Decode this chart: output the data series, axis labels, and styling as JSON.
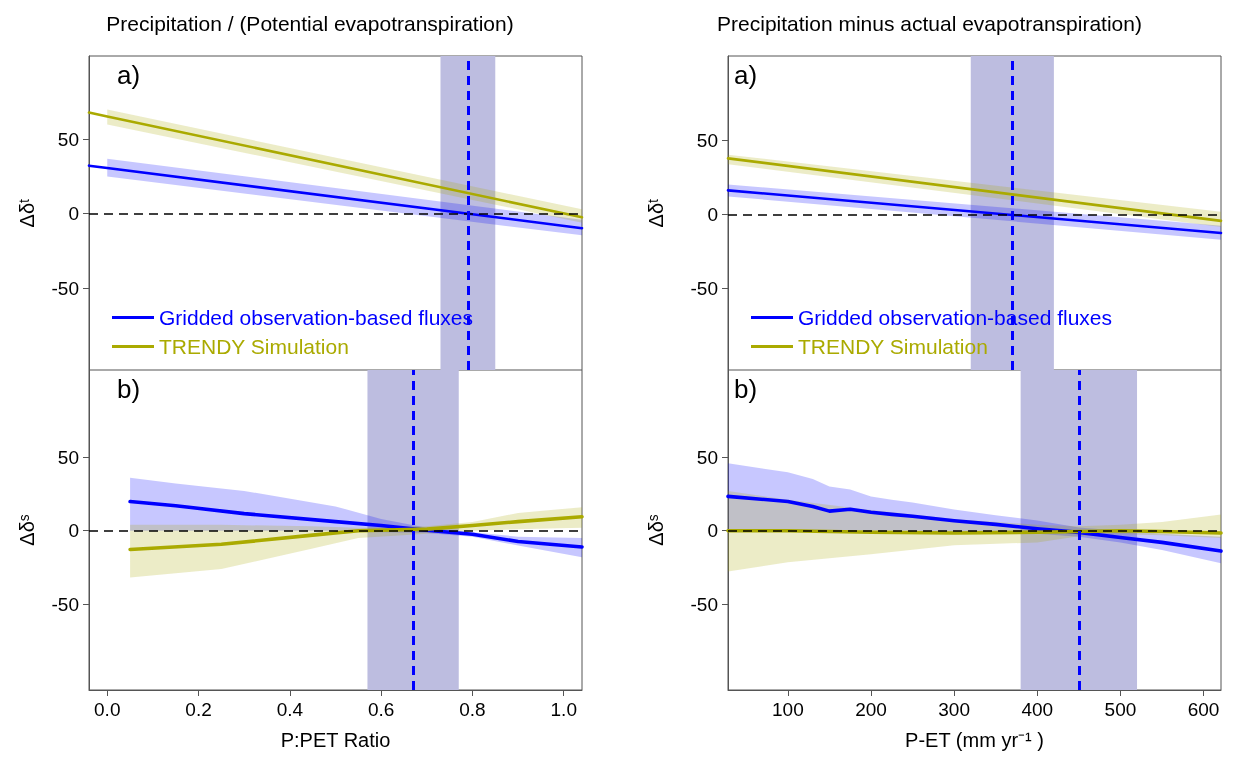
{
  "chart_data": [
    {
      "type": "line",
      "title": "Precipitation / (Potential evapotranspiration)",
      "ylabel": "Δδᵗ",
      "annotations": [
        "a)"
      ],
      "xlim": [
        -0.04,
        1.04
      ],
      "ylim": [
        -105,
        106
      ],
      "yticks": [
        -50,
        0,
        50
      ],
      "tick_labels": "y",
      "legend": "bottom left",
      "series": [
        {
          "name": "Gridded observation-based fluxes",
          "color": "#0000ff",
          "x": [
            -0.04,
            0,
            1.04
          ],
          "values": [
            32.3,
            30.7,
            -9.7
          ],
          "lower": [
            null,
            25,
            -14.5
          ],
          "upper": [
            null,
            37,
            -4
          ]
        },
        {
          "name": "TRENDY Simulation",
          "color": "#aaaa00",
          "x": [
            -0.04,
            0,
            1.04
          ],
          "values": [
            68,
            65.4,
            -2.4
          ],
          "lower": [
            null,
            60,
            -6
          ],
          "upper": [
            null,
            70,
            3
          ]
        }
      ],
      "ref_lines": [
        {
          "axis": "y",
          "value": 0,
          "color": "#000000",
          "line_style": "dashed"
        },
        {
          "axis": "x",
          "value": 0.79,
          "color": "#0000ff",
          "line_style": "dashed"
        }
      ],
      "bands": [
        {
          "axis": "x",
          "from": 0.73,
          "to": 0.85,
          "color": "#bdbde0"
        }
      ]
    },
    {
      "type": "line",
      "xlabel": "P:PET Ratio",
      "ylabel": "Δδˢ",
      "annotations": [
        "b)"
      ],
      "xlim": [
        -0.04,
        1.04
      ],
      "xticks": [
        {
          "value": 0,
          "label": "0.0"
        },
        0.2,
        0.4,
        0.6,
        0.8,
        {
          "value": 1,
          "label": "1.0"
        }
      ],
      "ylim": [
        -108,
        109
      ],
      "yticks": [
        -50,
        0,
        50
      ],
      "series": [
        {
          "color": "#0000ff",
          "x": [
            0.05,
            0.15,
            0.3,
            0.5,
            0.6,
            0.7,
            0.8,
            0.9,
            1.04
          ],
          "values": [
            19.8,
            17,
            11.6,
            6.2,
            3.5,
            0.3,
            -2.4,
            -7.3,
            -11
          ],
          "lower": [
            0,
            0,
            0,
            0,
            -1,
            -1.5,
            -4,
            -10,
            -18
          ],
          "upper": [
            36,
            32,
            27,
            16.5,
            8,
            2,
            -1,
            -4,
            -5
          ]
        },
        {
          "color": "#aaaa00",
          "x": [
            0.05,
            0.25,
            0.45,
            0.55,
            0.7,
            0.8,
            0.9,
            1.04
          ],
          "values": [
            -12.7,
            -9.2,
            -3,
            0,
            1.1,
            3.5,
            6.2,
            9.5
          ],
          "lower": [
            -31.7,
            -26,
            -12,
            -5,
            -2,
            0,
            1,
            2
          ],
          "upper": [
            4,
            4,
            3,
            2,
            3,
            6,
            12,
            16
          ]
        }
      ],
      "ref_lines": [
        {
          "axis": "y",
          "value": 0,
          "color": "#000000",
          "line_style": "dashed"
        },
        {
          "axis": "x",
          "value": 0.67,
          "color": "#0000ff",
          "line_style": "dashed"
        }
      ],
      "bands": [
        {
          "axis": "x",
          "from": 0.57,
          "to": 0.77,
          "color": "#bdbde0"
        }
      ]
    },
    {
      "type": "line",
      "title": "Precipitation minus actual evapotranspiration)",
      "ylabel": "Δδᵗ",
      "annotations": [
        "a)"
      ],
      "xlim": [
        28,
        621
      ],
      "ylim": [
        -105,
        107
      ],
      "yticks": [
        -50,
        0,
        50
      ],
      "tick_labels": "y",
      "legend": "bottom left",
      "series": [
        {
          "name": "Gridded observation-based fluxes",
          "color": "#0000ff",
          "x": [
            28,
            621
          ],
          "values": [
            16.3,
            -12.5
          ],
          "lower": [
            12.2,
            -17
          ],
          "upper": [
            20.3,
            -7.6
          ]
        },
        {
          "name": "TRENDY Simulation",
          "color": "#aaaa00",
          "x": [
            28,
            621
          ],
          "values": [
            37.9,
            -4.3
          ],
          "lower": [
            33.9,
            -8.4
          ],
          "upper": [
            40.4,
            1.9
          ]
        }
      ],
      "ref_lines": [
        {
          "axis": "y",
          "value": 0,
          "color": "#000000",
          "line_style": "dashed"
        },
        {
          "axis": "x",
          "value": 370,
          "color": "#0000ff",
          "line_style": "dashed"
        }
      ],
      "bands": [
        {
          "axis": "x",
          "from": 320,
          "to": 420,
          "color": "#bdbde0"
        }
      ]
    },
    {
      "type": "line",
      "xlabel": "P-ET (mm yr⁻¹ )",
      "ylabel": "Δδˢ",
      "annotations": [
        "b)"
      ],
      "xlim": [
        28,
        621
      ],
      "xticks": [
        100,
        200,
        300,
        400,
        500,
        600
      ],
      "ylim": [
        -108,
        109
      ],
      "yticks": [
        -50,
        0,
        50
      ],
      "series": [
        {
          "color": "#0000ff",
          "x": [
            28,
            100,
            130,
            150,
            175,
            200,
            225,
            250,
            300,
            350,
            400,
            450,
            500,
            550,
            621
          ],
          "values": [
            23.3,
            19.8,
            16.5,
            13.3,
            14.6,
            12.5,
            11.1,
            9.8,
            6.8,
            4.3,
            1.4,
            -1.1,
            -4.6,
            -7.9,
            -13.8
          ],
          "lower": [
            0,
            0,
            0,
            0,
            0,
            0,
            0,
            0,
            -0.5,
            -1,
            -2,
            -4,
            -8,
            -13,
            -22
          ],
          "upper": [
            45.8,
            39.6,
            35,
            30,
            27.9,
            23.3,
            21,
            19.2,
            14.4,
            10.5,
            7,
            2.2,
            0,
            -2,
            -4
          ]
        },
        {
          "color": "#aaaa00",
          "x": [
            28,
            100,
            200,
            300,
            400,
            450,
            500,
            550,
            621
          ],
          "values": [
            0,
            0,
            -1,
            -1.5,
            -1,
            -0.5,
            0,
            -0.5,
            -1.5
          ],
          "lower": [
            -27.6,
            -21.4,
            -16,
            -9.9,
            -7.9,
            -3.8,
            -2.4,
            -3,
            -5
          ],
          "upper": [
            27,
            21,
            14,
            8,
            4,
            3,
            4,
            6,
            11
          ]
        }
      ],
      "ref_lines": [
        {
          "axis": "y",
          "value": 0,
          "color": "#000000",
          "line_style": "dashed"
        },
        {
          "axis": "x",
          "value": 450,
          "color": "#0000ff",
          "line_style": "dashed"
        }
      ],
      "bands": [
        {
          "axis": "x",
          "from": 380,
          "to": 520,
          "color": "#bdbde0"
        }
      ]
    }
  ]
}
